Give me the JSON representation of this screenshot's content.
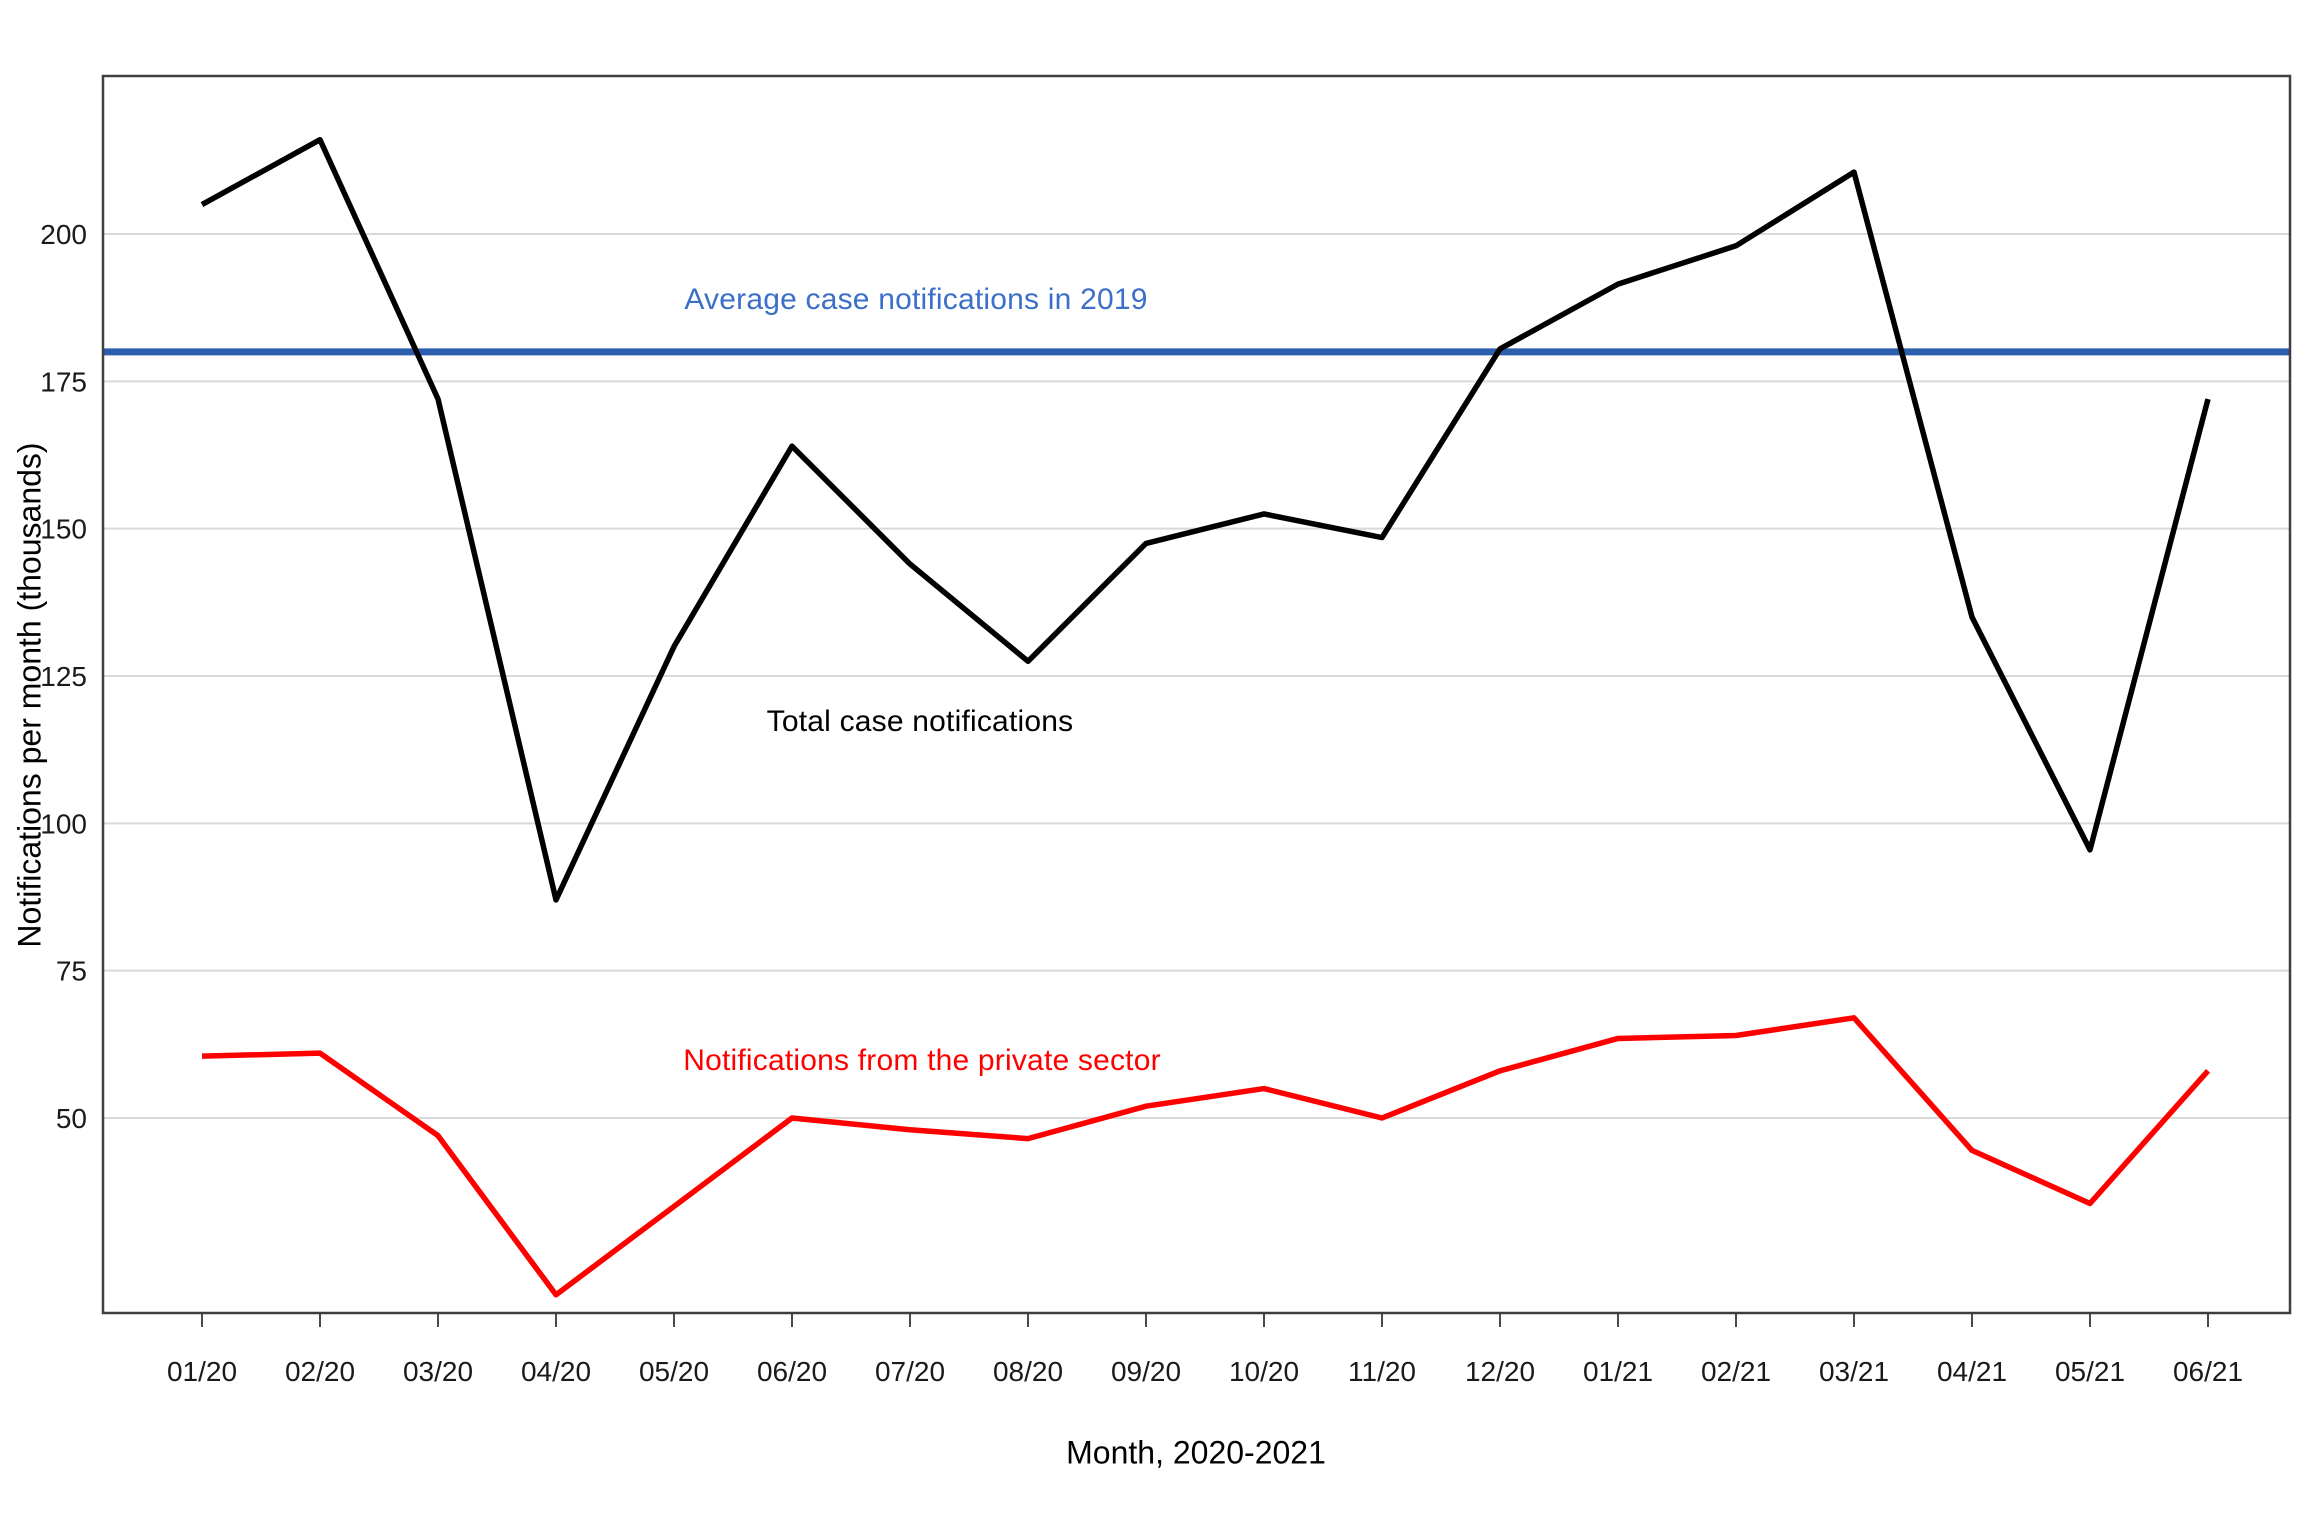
{
  "chart_data": {
    "type": "line",
    "title": "",
    "categories": [
      "01/20",
      "02/20",
      "03/20",
      "04/20",
      "05/20",
      "06/20",
      "07/20",
      "08/20",
      "09/20",
      "10/20",
      "11/20",
      "12/20",
      "01/21",
      "02/21",
      "03/21",
      "04/21",
      "05/21",
      "06/21"
    ],
    "series": [
      {
        "name": "Total case notifications",
        "color": "#000000",
        "values": [
          205,
          216,
          172,
          87,
          130,
          164,
          144,
          127.5,
          147.5,
          152.5,
          148.5,
          180.5,
          191.5,
          198,
          210.5,
          135,
          95.5,
          172
        ]
      },
      {
        "name": "Notifications from the private sector",
        "color": "#ff0000",
        "values": [
          60.5,
          61,
          47,
          20,
          35,
          50,
          48,
          46.5,
          52,
          55,
          50,
          58,
          63.5,
          64,
          67,
          44.5,
          35.5,
          58
        ]
      }
    ],
    "reference_line": {
      "label": "Average case notifications in 2019",
      "value": 180,
      "line_color": "#2b5fad",
      "label_color": "#3b6fc9"
    },
    "xlabel": "Month, 2020-2021",
    "ylabel": "Notifications per month (thousands)",
    "yticks": [
      50,
      75,
      100,
      125,
      150,
      175,
      200
    ],
    "ylim": [
      17,
      227
    ],
    "grid": "horizontal",
    "gridline_color": "#d9d9d9",
    "axis_frame_color": "#3f3f3f",
    "legend": "inline-annotations"
  }
}
